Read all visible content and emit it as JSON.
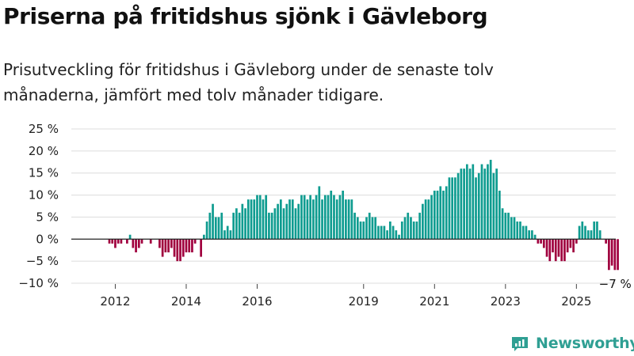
{
  "colors": {
    "positive": "#0f9c90",
    "negative": "#a0003e",
    "grid": "#dcdcdc",
    "zero_line": "#222222",
    "brand": "#2f9f93"
  },
  "title": "Priserna på fritidshus sjönk i Gävleborg",
  "subtitle": "Prisutveckling för fritidshus i Gävleborg under de senaste tolv månaderna, jämfört med tolv månader tidigare.",
  "brand": {
    "name": "Newsworthy",
    "icon": "newsworthy-logo-icon"
  },
  "chart_data": {
    "type": "bar",
    "title": "Priserna på fritidshus sjönk i Gävleborg",
    "ylabel": "",
    "xlabel": "",
    "ylim": [
      -10,
      25
    ],
    "y_ticks": [
      {
        "value": 25,
        "label": "25 %"
      },
      {
        "value": 20,
        "label": "20 %"
      },
      {
        "value": 15,
        "label": "15 %"
      },
      {
        "value": 10,
        "label": "10 %"
      },
      {
        "value": 5,
        "label": "5 %"
      },
      {
        "value": 0,
        "label": "0 %"
      },
      {
        "value": -5,
        "label": "−5 %"
      },
      {
        "value": -10,
        "label": "−10 %"
      }
    ],
    "x_ticks": [
      {
        "label": "2012",
        "index": 7
      },
      {
        "label": "2014",
        "index": 31
      },
      {
        "label": "2016",
        "index": 55
      },
      {
        "label": "2019",
        "index": 91
      },
      {
        "label": "2021",
        "index": 115
      },
      {
        "label": "2023",
        "index": 139
      },
      {
        "label": "2025",
        "index": 163
      }
    ],
    "series": [
      {
        "name": "Prisutveckling fritidshus Gävleborg (%)",
        "start": "2011-07",
        "frequency": "monthly",
        "values": [
          0,
          0,
          0,
          0,
          0,
          -1,
          -1,
          -2,
          -1,
          -1,
          0,
          -1,
          1,
          -2,
          -3,
          -2,
          -1,
          0,
          0,
          -1,
          0,
          0,
          -2,
          -4,
          -3,
          -3,
          -2,
          -4,
          -5,
          -5,
          -4,
          -3,
          -3,
          -3,
          -1,
          0,
          -4,
          1,
          4,
          6,
          8,
          5,
          5,
          6,
          2,
          3,
          2,
          6,
          7,
          6,
          8,
          7,
          9,
          9,
          9,
          10,
          10,
          9,
          10,
          6,
          6,
          7,
          8,
          9,
          7,
          8,
          9,
          9,
          7,
          8,
          10,
          10,
          9,
          10,
          9,
          10,
          12,
          9,
          10,
          10,
          11,
          10,
          9,
          10,
          11,
          9,
          9,
          9,
          6,
          5,
          4,
          4,
          5,
          6,
          5,
          5,
          3,
          3,
          3,
          2,
          4,
          3,
          2,
          1,
          4,
          5,
          6,
          5,
          4,
          4,
          6,
          8,
          9,
          9,
          10,
          11,
          11,
          12,
          11,
          12,
          14,
          14,
          14,
          15,
          16,
          16,
          17,
          16,
          17,
          14,
          15,
          17,
          16,
          17,
          18,
          15,
          16,
          11,
          7,
          6,
          6,
          5,
          5,
          4,
          4,
          3,
          3,
          2,
          2,
          1,
          -1,
          -1,
          -2,
          -4,
          -5,
          -3,
          -5,
          -4,
          -5,
          -5,
          -3,
          -2,
          -3,
          -1,
          3,
          4,
          3,
          2,
          2,
          4,
          4,
          2,
          0,
          -1,
          -7,
          -6,
          -7,
          -7
        ],
        "last_label": "−7 %"
      }
    ]
  }
}
